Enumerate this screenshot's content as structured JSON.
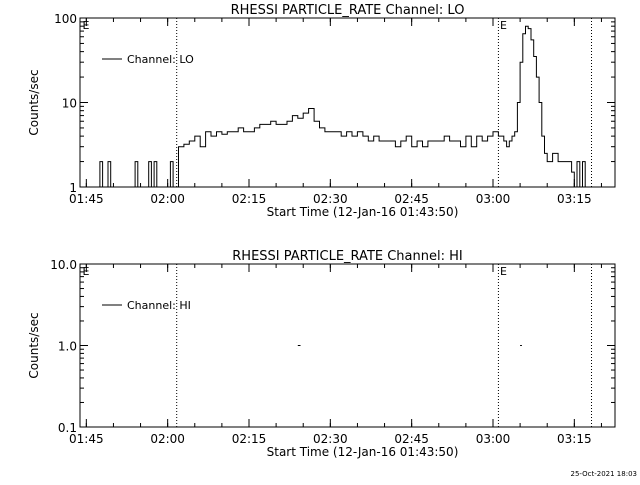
{
  "footer_stamp": "25-Oct-2021 18:03",
  "chart_data": [
    {
      "type": "line",
      "title": "RHESSI PARTICLE_RATE Channel: LO",
      "xlabel": "Start Time (12-Jan-16 01:43:50)",
      "ylabel": "Counts/sec",
      "yscale": "log",
      "ylim": [
        1,
        100
      ],
      "xlim": [
        "01:43:50",
        "03:22:30"
      ],
      "x_ticks": [
        "01:45",
        "02:00",
        "02:15",
        "02:30",
        "02:45",
        "03:00",
        "03:15"
      ],
      "y_ticks": [
        "1",
        "10",
        "100"
      ],
      "marker_times": [
        "02:01:40",
        "03:01:00",
        "03:18:10"
      ],
      "marker_label": "E",
      "grid": false,
      "legend_position": "top-left",
      "series": [
        {
          "name": "Channel: LO",
          "x": [
            "01:47:00",
            "01:47:30",
            "01:48:00",
            "01:48:30",
            "01:49:00",
            "01:49:30",
            "01:50:00",
            "01:50:30",
            "01:51:00",
            "01:51:30",
            "01:52:00",
            "01:52:30",
            "01:53:00",
            "01:53:30",
            "01:54:00",
            "01:54:30",
            "01:55:00",
            "01:55:30",
            "01:56:00",
            "01:56:30",
            "01:57:00",
            "01:57:30",
            "01:58:00",
            "01:58:30",
            "01:59:00",
            "01:59:30",
            "02:00:00",
            "02:00:30",
            "02:01:00",
            "02:01:30",
            "02:02:00",
            "02:02:30",
            "02:03:00",
            "02:04:00",
            "02:05:00",
            "02:06:00",
            "02:07:00",
            "02:08:00",
            "02:09:00",
            "02:10:00",
            "02:11:00",
            "02:12:00",
            "02:13:00",
            "02:14:00",
            "02:15:00",
            "02:16:00",
            "02:17:00",
            "02:18:00",
            "02:19:00",
            "02:20:00",
            "02:21:00",
            "02:22:00",
            "02:23:00",
            "02:24:00",
            "02:25:00",
            "02:26:00",
            "02:27:00",
            "02:28:00",
            "02:29:00",
            "02:30:00",
            "02:31:00",
            "02:32:00",
            "02:33:00",
            "02:34:00",
            "02:35:00",
            "02:36:00",
            "02:37:00",
            "02:38:00",
            "02:39:00",
            "02:40:00",
            "02:41:00",
            "02:42:00",
            "02:43:00",
            "02:44:00",
            "02:45:00",
            "02:46:00",
            "02:47:00",
            "02:48:00",
            "02:49:00",
            "02:50:00",
            "02:51:00",
            "02:52:00",
            "02:53:00",
            "02:54:00",
            "02:55:00",
            "02:56:00",
            "02:57:00",
            "02:58:00",
            "02:59:00",
            "03:00:00",
            "03:01:00",
            "03:01:30",
            "03:02:00",
            "03:02:30",
            "03:03:00",
            "03:03:30",
            "03:04:00",
            "03:04:30",
            "03:05:00",
            "03:05:30",
            "03:06:00",
            "03:06:30",
            "03:07:00",
            "03:07:30",
            "03:08:00",
            "03:08:30",
            "03:09:00",
            "03:09:30",
            "03:10:00",
            "03:11:00",
            "03:12:00",
            "03:13:00",
            "03:14:00",
            "03:14:30",
            "03:15:00",
            "03:15:30",
            "03:16:00",
            "03:16:30",
            "03:17:00"
          ],
          "values": [
            1,
            2,
            1,
            1,
            2,
            1,
            1,
            1,
            1,
            1,
            1,
            1,
            1,
            1,
            2,
            1,
            1,
            1,
            1,
            2,
            1,
            2,
            1,
            1,
            1,
            1,
            1,
            2,
            1,
            1,
            3,
            3,
            3.2,
            3.5,
            4,
            3,
            4.5,
            4,
            4.5,
            4.2,
            4.5,
            4.5,
            5,
            4.5,
            4.5,
            5,
            5.5,
            5.5,
            6,
            5.5,
            5.5,
            6,
            7,
            6.5,
            7.5,
            8.5,
            6,
            5,
            4.5,
            4.5,
            4.5,
            4,
            4.5,
            4,
            4.5,
            4,
            3.5,
            4,
            3.5,
            3.5,
            3.5,
            3,
            3.5,
            4,
            3,
            3.5,
            3,
            3.5,
            3.5,
            3.5,
            4,
            3.5,
            3.5,
            3,
            4,
            3,
            4,
            3.5,
            4,
            4.5,
            4,
            4,
            3.5,
            3,
            3.5,
            4,
            4.5,
            10,
            30,
            65,
            80,
            75,
            55,
            35,
            20,
            10,
            4,
            2.5,
            2,
            2.5,
            2,
            2,
            2,
            1.5,
            1,
            2,
            1,
            2,
            1
          ]
        }
      ]
    },
    {
      "type": "line",
      "title": "RHESSI PARTICLE_RATE Channel: HI",
      "xlabel": "Start Time (12-Jan-16 01:43:50)",
      "ylabel": "Counts/sec",
      "yscale": "log",
      "ylim": [
        0.1,
        10
      ],
      "xlim": [
        "01:43:50",
        "03:22:30"
      ],
      "x_ticks": [
        "01:45",
        "02:00",
        "02:15",
        "02:30",
        "02:45",
        "03:00",
        "03:15"
      ],
      "y_ticks": [
        "0.1",
        "1.0",
        "10.0"
      ],
      "marker_times": [
        "02:01:40",
        "03:01:00",
        "03:18:10"
      ],
      "marker_label": "E",
      "grid": false,
      "legend_position": "top-left",
      "series": [
        {
          "name": "Channel: HI",
          "segments": [
            {
              "x": [
                "02:24:00",
                "02:24:30"
              ],
              "values": [
                1,
                1
              ]
            },
            {
              "x": [
                "03:05:00",
                "03:05:20"
              ],
              "values": [
                1,
                1
              ]
            }
          ]
        }
      ]
    }
  ]
}
